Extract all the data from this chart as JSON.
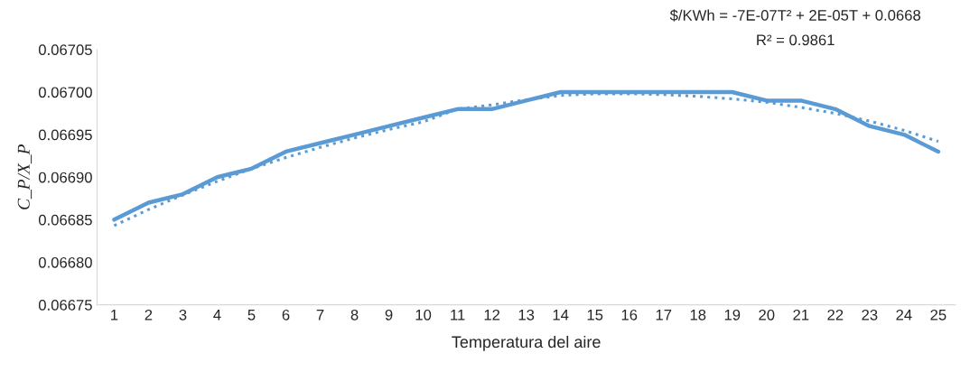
{
  "chart_data": {
    "type": "line",
    "xlabel": "Temperatura del aire",
    "ylabel": "C_P/X_P",
    "categories": [
      "1",
      "2",
      "3",
      "4",
      "5",
      "6",
      "7",
      "8",
      "9",
      "10",
      "11",
      "12",
      "13",
      "14",
      "15",
      "16",
      "17",
      "18",
      "19",
      "20",
      "21",
      "22",
      "23",
      "24",
      "25"
    ],
    "series": [
      {
        "color": "#5b9bd5",
        "line_style": "solid",
        "values": [
          0.06685,
          0.06687,
          0.06688,
          0.0669,
          0.06691,
          0.06693,
          0.06694,
          0.06695,
          0.06696,
          0.06697,
          0.06698,
          0.06698,
          0.06699,
          0.067,
          0.067,
          0.067,
          0.067,
          0.067,
          0.067,
          0.06699,
          0.06699,
          0.06698,
          0.06696,
          0.06695,
          0.06693
        ]
      },
      {
        "color": "#5b9bd5",
        "line_style": "dotted",
        "x": [
          "1",
          "2",
          "3",
          "4",
          "5",
          "6",
          "7",
          "8",
          "9",
          "10",
          "11",
          "12",
          "13",
          "14",
          "15",
          "16",
          "17",
          "18",
          "19",
          "20",
          "21",
          "22",
          "23",
          "24",
          "25"
        ],
        "values": [
          0.066843,
          0.066862,
          0.066879,
          0.066895,
          0.06691,
          0.066923,
          0.066935,
          0.066946,
          0.066956,
          0.066965,
          0.06698,
          0.066985,
          0.066991,
          0.066996,
          0.066998,
          0.066998,
          0.066997,
          0.066995,
          0.066992,
          0.066988,
          0.066982,
          0.066975,
          0.066966,
          0.066955,
          0.066942
        ]
      }
    ],
    "annotations": [
      "$/KWh = -7E-07T² + 2E-05T + 0.0668",
      "R² = 0.9861"
    ],
    "ylim": [
      0.06675,
      0.06705
    ],
    "yticks": [
      {
        "value": 0.06675,
        "label": "0.06675"
      },
      {
        "value": 0.0668,
        "label": "0.06680"
      },
      {
        "value": 0.06685,
        "label": "0.06685"
      },
      {
        "value": 0.0669,
        "label": "0.06690"
      },
      {
        "value": 0.06695,
        "label": "0.06695"
      },
      {
        "value": 0.067,
        "label": "0.06700"
      },
      {
        "value": 0.06705,
        "label": "0.06705"
      }
    ],
    "grid": false,
    "legend": false
  }
}
